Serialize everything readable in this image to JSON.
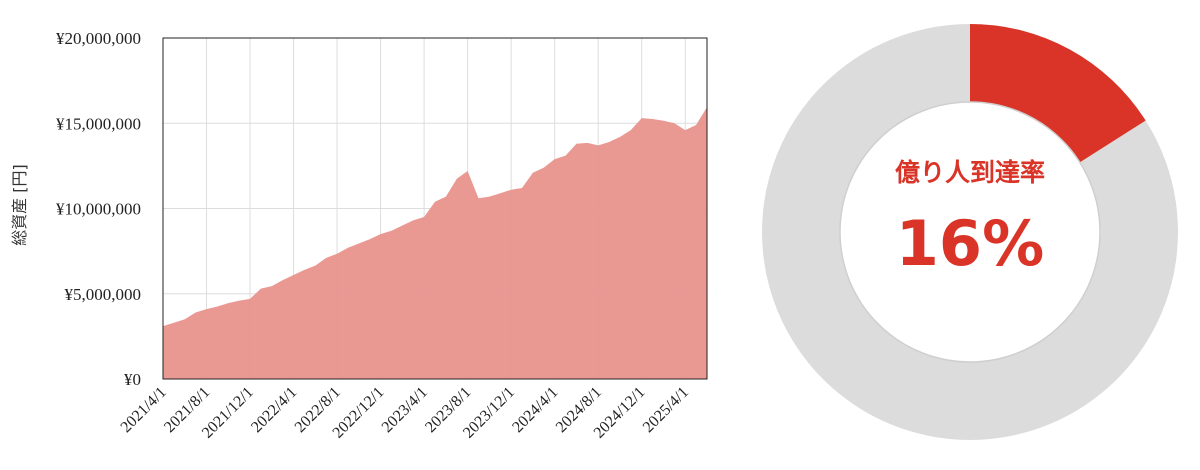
{
  "chart_data": [
    {
      "type": "area",
      "ylabel": "総資産 [円]",
      "ylim": [
        0,
        20000000
      ],
      "y_ticks": [
        "¥0",
        "¥5,000,000",
        "¥10,000,000",
        "¥15,000,000",
        "¥20,000,000"
      ],
      "y_tick_values": [
        0,
        5000000,
        10000000,
        15000000,
        20000000
      ],
      "x_ticks": [
        "2021/4/1",
        "2021/8/1",
        "2021/12/1",
        "2022/4/1",
        "2022/8/1",
        "2022/12/1",
        "2023/4/1",
        "2023/8/1",
        "2023/12/1",
        "2024/4/1",
        "2024/8/1",
        "2024/12/1",
        "2025/4/1"
      ],
      "grid": true,
      "color": "#e8928c",
      "x": [
        "2021/4/1",
        "2021/5/1",
        "2021/6/1",
        "2021/7/1",
        "2021/8/1",
        "2021/9/1",
        "2021/10/1",
        "2021/11/1",
        "2021/12/1",
        "2022/1/1",
        "2022/2/1",
        "2022/3/1",
        "2022/4/1",
        "2022/5/1",
        "2022/6/1",
        "2022/7/1",
        "2022/8/1",
        "2022/9/1",
        "2022/10/1",
        "2022/11/1",
        "2022/12/1",
        "2023/1/1",
        "2023/2/1",
        "2023/3/1",
        "2023/4/1",
        "2023/5/1",
        "2023/6/1",
        "2023/7/1",
        "2023/8/1",
        "2023/9/1",
        "2023/10/1",
        "2023/11/1",
        "2023/12/1",
        "2024/1/1",
        "2024/2/1",
        "2024/3/1",
        "2024/4/1",
        "2024/5/1",
        "2024/6/1",
        "2024/7/1",
        "2024/8/1",
        "2024/9/1",
        "2024/10/1",
        "2024/11/1",
        "2024/12/1",
        "2025/1/1",
        "2025/2/1",
        "2025/3/1",
        "2025/4/1",
        "2025/5/1",
        "2025/6/1"
      ],
      "values": [
        3100000,
        3300000,
        3500000,
        3900000,
        4100000,
        4250000,
        4450000,
        4600000,
        4700000,
        5300000,
        5450000,
        5800000,
        6100000,
        6400000,
        6650000,
        7100000,
        7350000,
        7700000,
        7950000,
        8200000,
        8500000,
        8700000,
        9000000,
        9300000,
        9500000,
        10400000,
        10700000,
        11750000,
        12200000,
        10600000,
        10700000,
        10900000,
        11100000,
        11200000,
        12100000,
        12400000,
        12900000,
        13100000,
        13800000,
        13850000,
        13700000,
        13900000,
        14200000,
        14600000,
        15300000,
        15250000,
        15150000,
        15000000,
        14600000,
        14900000,
        15950000
      ]
    },
    {
      "type": "pie",
      "title": "億り人到達率",
      "value_label": "16%",
      "value": 0.16,
      "colors": {
        "filled": "#d93427",
        "remaining": "#dcdcdc",
        "text": "#d93427"
      }
    }
  ]
}
